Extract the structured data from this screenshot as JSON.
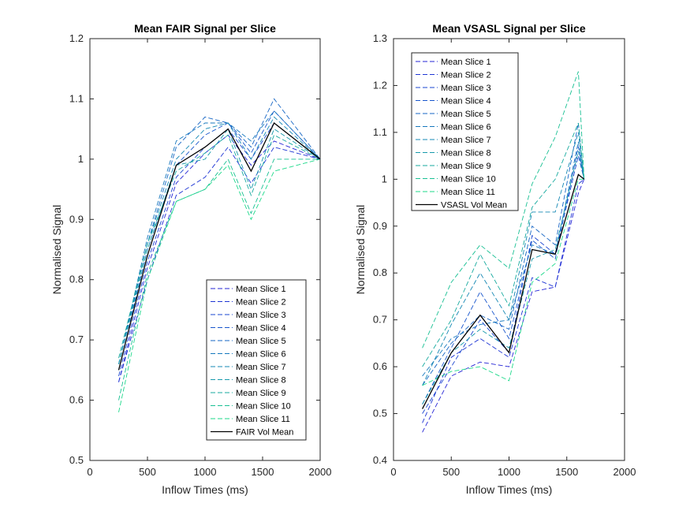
{
  "chart_data": [
    {
      "type": "line",
      "title": "Mean FAIR Signal per Slice",
      "xlabel": "Inflow Times (ms)",
      "ylabel": "Normalised Signal",
      "xlim": [
        0,
        2000
      ],
      "ylim": [
        0.5,
        1.2
      ],
      "xticks": [
        0,
        500,
        1000,
        1500,
        2000
      ],
      "yticks": [
        0.5,
        0.6,
        0.7,
        0.8,
        0.9,
        1,
        1.1,
        1.2
      ],
      "legend_location": "bottom-right",
      "x": [
        250,
        500,
        750,
        1000,
        1200,
        1400,
        1600,
        2000
      ],
      "series": [
        {
          "name": "Mean Slice 1",
          "color": "#2525d6",
          "dashed": true,
          "values": [
            0.63,
            0.82,
            0.96,
            1.01,
            1.04,
            0.99,
            1.03,
            1.0
          ]
        },
        {
          "name": "Mean Slice 2",
          "color": "#1e35d4",
          "dashed": true,
          "values": [
            0.63,
            0.8,
            0.94,
            0.97,
            1.02,
            0.96,
            1.02,
            1.0
          ]
        },
        {
          "name": "Mean Slice 3",
          "color": "#1a45d0",
          "dashed": true,
          "values": [
            0.64,
            0.83,
            0.97,
            1.02,
            1.05,
            1.0,
            1.06,
            1.0
          ]
        },
        {
          "name": "Mean Slice 4",
          "color": "#1755cc",
          "dashed": true,
          "values": [
            0.65,
            0.85,
            0.99,
            1.04,
            1.06,
            1.01,
            1.08,
            1.0
          ]
        },
        {
          "name": "Mean Slice 5",
          "color": "#1565c4",
          "dashed": true,
          "values": [
            0.66,
            0.86,
            1.02,
            1.07,
            1.06,
            1.02,
            1.1,
            1.0
          ]
        },
        {
          "name": "Mean Slice 6",
          "color": "#1577bd",
          "dashed": true,
          "values": [
            0.66,
            0.87,
            1.03,
            1.06,
            1.06,
            1.03,
            1.08,
            1.0
          ]
        },
        {
          "name": "Mean Slice 7",
          "color": "#1588b4",
          "dashed": true,
          "values": [
            0.66,
            0.86,
            1.0,
            1.05,
            1.06,
            1.0,
            1.07,
            1.0
          ]
        },
        {
          "name": "Mean Slice 8",
          "color": "#1699ab",
          "dashed": true,
          "values": [
            0.66,
            0.85,
            0.99,
            1.0,
            1.05,
            0.95,
            1.05,
            1.0
          ]
        },
        {
          "name": "Mean Slice 9",
          "color": "#17aa9f",
          "dashed": true,
          "values": [
            0.67,
            0.86,
            0.98,
            1.01,
            1.04,
            0.94,
            1.04,
            1.0
          ]
        },
        {
          "name": "Mean Slice 10",
          "color": "#19c093",
          "dashed": true,
          "values": [
            0.6,
            0.81,
            0.93,
            0.95,
            1.0,
            0.91,
            1.0,
            1.0
          ]
        },
        {
          "name": "Mean Slice 11",
          "color": "#1cd98a",
          "dashed": true,
          "values": [
            0.58,
            0.8,
            0.93,
            0.95,
            0.99,
            0.9,
            0.98,
            1.0
          ]
        },
        {
          "name": "FAIR Vol Mean",
          "color": "#000000",
          "dashed": false,
          "values": [
            0.65,
            0.84,
            0.99,
            1.02,
            1.05,
            0.98,
            1.06,
            1.0
          ]
        }
      ]
    },
    {
      "type": "line",
      "title": "Mean VSASL Signal per Slice",
      "xlabel": "Inflow Times (ms)",
      "ylabel": "Normalised Signal",
      "xlim": [
        0,
        2000
      ],
      "ylim": [
        0.4,
        1.3
      ],
      "xticks": [
        0,
        500,
        1000,
        1500,
        2000
      ],
      "yticks": [
        0.4,
        0.5,
        0.6,
        0.7,
        0.8,
        0.9,
        1,
        1.1,
        1.2,
        1.3
      ],
      "legend_location": "top-left",
      "x": [
        250,
        500,
        750,
        1000,
        1200,
        1400,
        1600,
        1650
      ],
      "series": [
        {
          "name": "Mean Slice 1",
          "color": "#2525d6",
          "dashed": true,
          "values": [
            0.46,
            0.58,
            0.61,
            0.6,
            0.76,
            0.77,
            0.97,
            1.0
          ]
        },
        {
          "name": "Mean Slice 2",
          "color": "#1e35d4",
          "dashed": true,
          "values": [
            0.48,
            0.62,
            0.66,
            0.62,
            0.79,
            0.77,
            0.99,
            1.0
          ]
        },
        {
          "name": "Mean Slice 3",
          "color": "#1a45d0",
          "dashed": true,
          "values": [
            0.5,
            0.6,
            0.7,
            0.63,
            0.88,
            0.84,
            1.05,
            1.0
          ]
        },
        {
          "name": "Mean Slice 4",
          "color": "#1755cc",
          "dashed": true,
          "values": [
            0.52,
            0.64,
            0.76,
            0.66,
            0.87,
            0.83,
            1.07,
            1.0
          ]
        },
        {
          "name": "Mean Slice 5",
          "color": "#1565c4",
          "dashed": true,
          "values": [
            0.56,
            0.65,
            0.71,
            0.68,
            0.9,
            0.86,
            1.12,
            1.0
          ]
        },
        {
          "name": "Mean Slice 6",
          "color": "#1577bd",
          "dashed": true,
          "values": [
            0.58,
            0.66,
            0.69,
            0.7,
            0.86,
            0.84,
            1.08,
            1.0
          ]
        },
        {
          "name": "Mean Slice 7",
          "color": "#1588b4",
          "dashed": true,
          "values": [
            0.56,
            0.69,
            0.8,
            0.7,
            0.93,
            0.93,
            1.1,
            1.0
          ]
        },
        {
          "name": "Mean Slice 8",
          "color": "#1699ab",
          "dashed": true,
          "values": [
            0.52,
            0.63,
            0.68,
            0.64,
            0.83,
            0.85,
            1.06,
            1.0
          ]
        },
        {
          "name": "Mean Slice 9",
          "color": "#17aa9f",
          "dashed": true,
          "values": [
            0.6,
            0.7,
            0.84,
            0.73,
            0.94,
            1.0,
            1.12,
            1.0
          ]
        },
        {
          "name": "Mean Slice 10",
          "color": "#19c093",
          "dashed": true,
          "values": [
            0.64,
            0.78,
            0.86,
            0.81,
            0.99,
            1.09,
            1.23,
            1.0
          ]
        },
        {
          "name": "Mean Slice 11",
          "color": "#1cd98a",
          "dashed": true,
          "values": [
            0.56,
            0.59,
            0.6,
            0.57,
            0.78,
            0.82,
            1.0,
            1.0
          ]
        },
        {
          "name": "VSASL Vol Mean",
          "color": "#000000",
          "dashed": false,
          "values": [
            0.51,
            0.63,
            0.71,
            0.63,
            0.85,
            0.84,
            1.01,
            1.0
          ]
        }
      ]
    }
  ]
}
